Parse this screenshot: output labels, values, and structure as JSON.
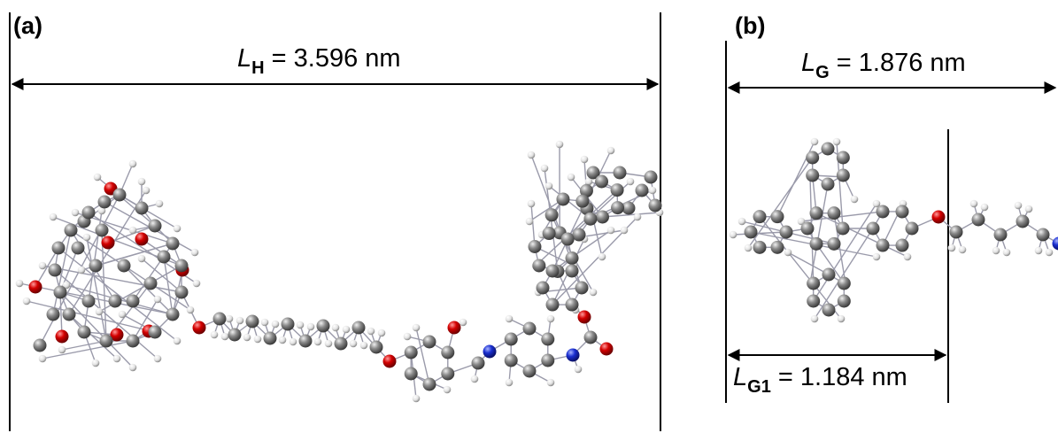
{
  "panel_a": {
    "label": "(a)",
    "dimension": {
      "symbol": "L",
      "subscript": "H",
      "value": " = 3.596 nm"
    }
  },
  "panel_b": {
    "label": "(b)",
    "dimension_total": {
      "symbol": "L",
      "subscript": "G",
      "value": " = 1.876 nm"
    },
    "dimension_part": {
      "symbol": "L",
      "subscript": "G1",
      "value": " = 1.184 nm"
    }
  },
  "colors": {
    "carbon": "#8a8a8a",
    "hydrogen": "#e6e6e6",
    "oxygen": "#d40000",
    "nitrogen": "#1a2fd0",
    "bond": "#9a9aaa",
    "line": "#000000"
  }
}
